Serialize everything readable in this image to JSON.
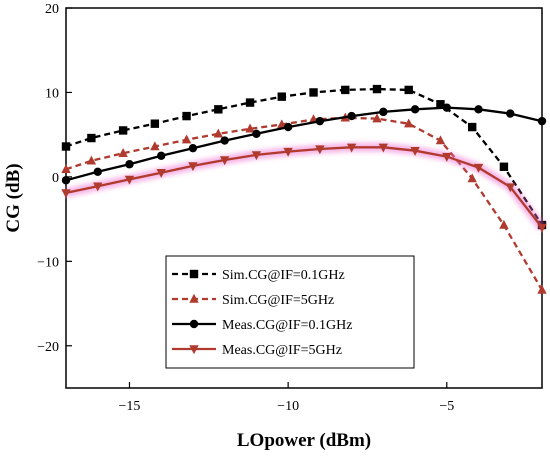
{
  "chart_data": {
    "type": "line",
    "xlabel": "LOpower (dBm)",
    "ylabel": "CG (dB)",
    "xlim": [
      -17,
      -2
    ],
    "ylim": [
      -25,
      20
    ],
    "xticks": [
      -15,
      -10,
      -5
    ],
    "yticks": [
      -20,
      -10,
      0,
      10,
      20
    ],
    "grid": false,
    "legend_position": "bottom-center",
    "series": [
      {
        "name": "Sim.CG@IF=0.1GHz",
        "color": "#000000",
        "style": "dashed",
        "marker": "square",
        "glow": false,
        "x": [
          -17,
          -16.2,
          -15.2,
          -14.2,
          -13.2,
          -12.2,
          -11.2,
          -10.2,
          -9.2,
          -8.2,
          -7.2,
          -6.2,
          -5.2,
          -4.2,
          -3.2,
          -2
        ],
        "y": [
          3.6,
          4.6,
          5.5,
          6.3,
          7.2,
          8.0,
          8.8,
          9.5,
          10.0,
          10.3,
          10.4,
          10.3,
          8.6,
          5.9,
          1.2,
          -5.7
        ]
      },
      {
        "name": "Sim.CG@IF=5GHz",
        "color": "#b03a2e",
        "style": "dashed",
        "marker": "triangle-up",
        "glow": false,
        "x": [
          -17,
          -16.2,
          -15.2,
          -14.2,
          -13.2,
          -12.2,
          -11.2,
          -10.2,
          -9.2,
          -8.2,
          -7.2,
          -6.2,
          -5.2,
          -4.2,
          -3.2,
          -2
        ],
        "y": [
          0.9,
          1.9,
          2.8,
          3.6,
          4.4,
          5.1,
          5.7,
          6.2,
          6.8,
          7.0,
          6.9,
          6.3,
          4.3,
          -0.2,
          -5.7,
          -13.4
        ]
      },
      {
        "name": "Meas.CG@IF=0.1GHz",
        "color": "#000000",
        "style": "solid",
        "marker": "circle",
        "glow": false,
        "x": [
          -17,
          -16,
          -15,
          -14,
          -13,
          -12,
          -11,
          -10,
          -9,
          -8,
          -7,
          -6,
          -5,
          -4,
          -3,
          -2
        ],
        "y": [
          -0.4,
          0.6,
          1.5,
          2.5,
          3.4,
          4.3,
          5.1,
          5.9,
          6.6,
          7.2,
          7.7,
          8.0,
          8.2,
          8.0,
          7.5,
          6.6
        ]
      },
      {
        "name": "Meas.CG@IF=5GHz",
        "color": "#b03a2e",
        "style": "solid",
        "marker": "triangle-down",
        "glow": true,
        "x": [
          -17,
          -16,
          -15,
          -14,
          -13,
          -12,
          -11,
          -10,
          -9,
          -8,
          -7,
          -6,
          -5,
          -4,
          -3,
          -2
        ],
        "y": [
          -1.9,
          -1.1,
          -0.3,
          0.5,
          1.3,
          2.0,
          2.6,
          3.0,
          3.3,
          3.5,
          3.5,
          3.1,
          2.4,
          1.1,
          -1.2,
          -6.0
        ]
      }
    ]
  }
}
